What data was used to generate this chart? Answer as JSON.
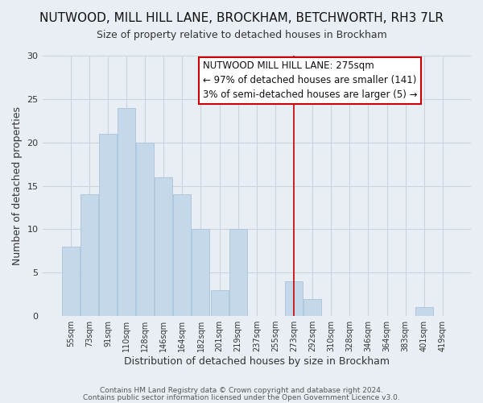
{
  "title": "NUTWOOD, MILL HILL LANE, BROCKHAM, BETCHWORTH, RH3 7LR",
  "subtitle": "Size of property relative to detached houses in Brockham",
  "xlabel": "Distribution of detached houses by size in Brockham",
  "ylabel": "Number of detached properties",
  "footer1": "Contains HM Land Registry data © Crown copyright and database right 2024.",
  "footer2": "Contains public sector information licensed under the Open Government Licence v3.0.",
  "bar_labels": [
    "55sqm",
    "73sqm",
    "91sqm",
    "110sqm",
    "128sqm",
    "146sqm",
    "164sqm",
    "182sqm",
    "201sqm",
    "219sqm",
    "237sqm",
    "255sqm",
    "273sqm",
    "292sqm",
    "310sqm",
    "328sqm",
    "346sqm",
    "364sqm",
    "383sqm",
    "401sqm",
    "419sqm"
  ],
  "bar_values": [
    8,
    14,
    21,
    24,
    20,
    16,
    14,
    10,
    3,
    10,
    0,
    0,
    4,
    2,
    0,
    0,
    0,
    0,
    0,
    1,
    0
  ],
  "bar_color": "#c5d8ea",
  "bar_edge_color": "#a8c4dc",
  "vline_index": 12,
  "vline_color": "#cc0000",
  "ylim": [
    0,
    30
  ],
  "yticks": [
    0,
    5,
    10,
    15,
    20,
    25,
    30
  ],
  "annotation_title": "NUTWOOD MILL HILL LANE: 275sqm",
  "annotation_line1": "← 97% of detached houses are smaller (141)",
  "annotation_line2": "3% of semi-detached houses are larger (5) →",
  "annotation_box_color": "#ffffff",
  "annotation_border_color": "#cc0000",
  "background_color": "#e8eef4",
  "grid_color": "#c8d4e0",
  "title_fontsize": 11,
  "subtitle_fontsize": 9,
  "annotation_fontsize": 8.5
}
